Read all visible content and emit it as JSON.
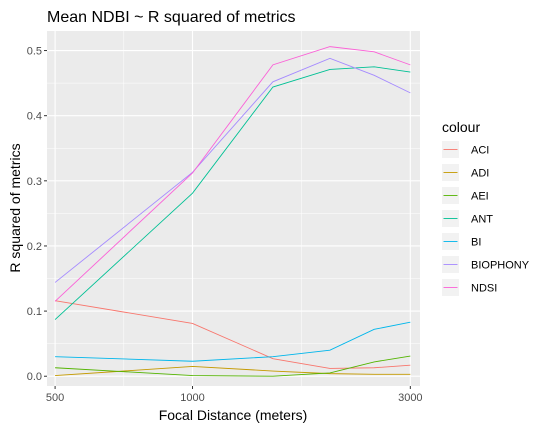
{
  "chart_data": {
    "type": "line",
    "title": "Mean NDBI ~ R squared of metrics",
    "xlabel": "Focal Distance (meters)",
    "ylabel": "R squared of metrics",
    "x_scale": "log10",
    "xlim": [
      480,
      3150
    ],
    "ylim": [
      -0.015,
      0.53
    ],
    "x_ticks": [
      500,
      1000,
      3000
    ],
    "x_tick_labels": [
      "500",
      "1000",
      "3000"
    ],
    "y_ticks": [
      0.0,
      0.1,
      0.2,
      0.3,
      0.4,
      0.5
    ],
    "y_tick_labels": [
      "0.0",
      "0.1",
      "0.2",
      "0.3",
      "0.4",
      "0.5"
    ],
    "grid": true,
    "legend_title": "colour",
    "legend_position": "right",
    "x": [
      500,
      1000,
      1500,
      2000,
      2500,
      3000
    ],
    "series": [
      {
        "name": "ACI",
        "color": "#F8766D",
        "values": [
          0.116,
          0.081,
          0.027,
          0.012,
          0.013,
          0.017
        ]
      },
      {
        "name": "ADI",
        "color": "#C49A00",
        "values": [
          0.001,
          0.015,
          0.008,
          0.004,
          0.003,
          0.003
        ]
      },
      {
        "name": "AEI",
        "color": "#53B400",
        "values": [
          0.013,
          0.001,
          0.0,
          0.005,
          0.022,
          0.031
        ]
      },
      {
        "name": "ANT",
        "color": "#00C094",
        "values": [
          0.087,
          0.281,
          0.444,
          0.471,
          0.475,
          0.467
        ]
      },
      {
        "name": "BI",
        "color": "#00B6EB",
        "values": [
          0.03,
          0.023,
          0.03,
          0.04,
          0.072,
          0.083
        ]
      },
      {
        "name": "BIOPHONY",
        "color": "#A58AFF",
        "values": [
          0.144,
          0.313,
          0.452,
          0.488,
          0.462,
          0.435
        ]
      },
      {
        "name": "NDSI",
        "color": "#FB61D7",
        "values": [
          0.115,
          0.312,
          0.478,
          0.506,
          0.498,
          0.478
        ]
      }
    ]
  }
}
